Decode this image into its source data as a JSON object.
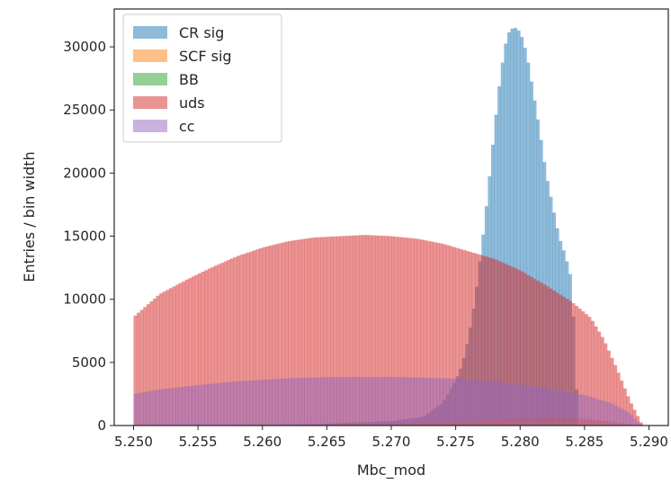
{
  "chart_data": {
    "type": "histogram",
    "title": "",
    "xlabel": "Mbc_mod",
    "ylabel": "Entries / bin width",
    "xlim": [
      5.2485,
      5.2915
    ],
    "ylim": [
      0,
      33000
    ],
    "bins": {
      "start": 5.25,
      "end": 5.29,
      "count": 160
    },
    "x_ticks": [
      "5.250",
      "5.255",
      "5.260",
      "5.265",
      "5.270",
      "5.275",
      "5.280",
      "5.285",
      "5.290"
    ],
    "y_ticks": [
      "0",
      "5000",
      "10000",
      "15000",
      "20000",
      "25000",
      "30000"
    ],
    "legend_position": "top-left",
    "grid": false,
    "opacity": 0.5,
    "series": [
      {
        "name": "CR sig",
        "color": "#1f77b4",
        "points": [
          [
            5.25,
            0
          ],
          [
            5.26,
            50
          ],
          [
            5.265,
            150
          ],
          [
            5.27,
            350
          ],
          [
            5.2725,
            700
          ],
          [
            5.274,
            1800
          ],
          [
            5.275,
            3600
          ],
          [
            5.2755,
            4800
          ],
          [
            5.276,
            7000
          ],
          [
            5.2765,
            10000
          ],
          [
            5.277,
            14000
          ],
          [
            5.2775,
            18500
          ],
          [
            5.278,
            23500
          ],
          [
            5.2785,
            28000
          ],
          [
            5.279,
            31000
          ],
          [
            5.2795,
            31600
          ],
          [
            5.28,
            31200
          ],
          [
            5.2805,
            29500
          ],
          [
            5.281,
            26500
          ],
          [
            5.2815,
            23500
          ],
          [
            5.282,
            20000
          ],
          [
            5.2825,
            17500
          ],
          [
            5.283,
            15000
          ],
          [
            5.2835,
            13500
          ],
          [
            5.284,
            11500
          ],
          [
            5.2845,
            0
          ],
          [
            5.29,
            0
          ]
        ]
      },
      {
        "name": "SCF sig",
        "color": "#ff7f0e",
        "points": [
          [
            5.25,
            0
          ],
          [
            5.26,
            50
          ],
          [
            5.27,
            150
          ],
          [
            5.275,
            300
          ],
          [
            5.278,
            450
          ],
          [
            5.28,
            600
          ],
          [
            5.283,
            650
          ],
          [
            5.285,
            550
          ],
          [
            5.287,
            300
          ],
          [
            5.2885,
            100
          ],
          [
            5.289,
            0
          ]
        ]
      },
      {
        "name": "BB",
        "color": "#2ca02c",
        "points": [
          [
            5.25,
            0
          ],
          [
            5.26,
            10
          ],
          [
            5.28,
            30
          ],
          [
            5.286,
            20
          ],
          [
            5.289,
            0
          ]
        ]
      },
      {
        "name": "uds",
        "color": "#d62728",
        "points": [
          [
            5.25,
            8600
          ],
          [
            5.251,
            9500
          ],
          [
            5.252,
            10400
          ],
          [
            5.254,
            11500
          ],
          [
            5.256,
            12500
          ],
          [
            5.258,
            13400
          ],
          [
            5.26,
            14100
          ],
          [
            5.262,
            14600
          ],
          [
            5.264,
            14900
          ],
          [
            5.266,
            15000
          ],
          [
            5.268,
            15100
          ],
          [
            5.27,
            15000
          ],
          [
            5.272,
            14800
          ],
          [
            5.274,
            14400
          ],
          [
            5.276,
            13800
          ],
          [
            5.278,
            13200
          ],
          [
            5.28,
            12300
          ],
          [
            5.282,
            11100
          ],
          [
            5.284,
            9800
          ],
          [
            5.2855,
            8500
          ],
          [
            5.2865,
            6800
          ],
          [
            5.2875,
            4500
          ],
          [
            5.2885,
            2000
          ],
          [
            5.289,
            1000
          ],
          [
            5.2895,
            0
          ],
          [
            5.29,
            0
          ]
        ]
      },
      {
        "name": "cc",
        "color": "#9467bd",
        "points": [
          [
            5.25,
            2500
          ],
          [
            5.252,
            2850
          ],
          [
            5.255,
            3200
          ],
          [
            5.258,
            3500
          ],
          [
            5.262,
            3750
          ],
          [
            5.266,
            3850
          ],
          [
            5.27,
            3850
          ],
          [
            5.274,
            3750
          ],
          [
            5.278,
            3500
          ],
          [
            5.282,
            3000
          ],
          [
            5.285,
            2400
          ],
          [
            5.287,
            1800
          ],
          [
            5.2885,
            1000
          ],
          [
            5.289,
            400
          ],
          [
            5.2895,
            0
          ],
          [
            5.29,
            0
          ]
        ]
      }
    ]
  }
}
